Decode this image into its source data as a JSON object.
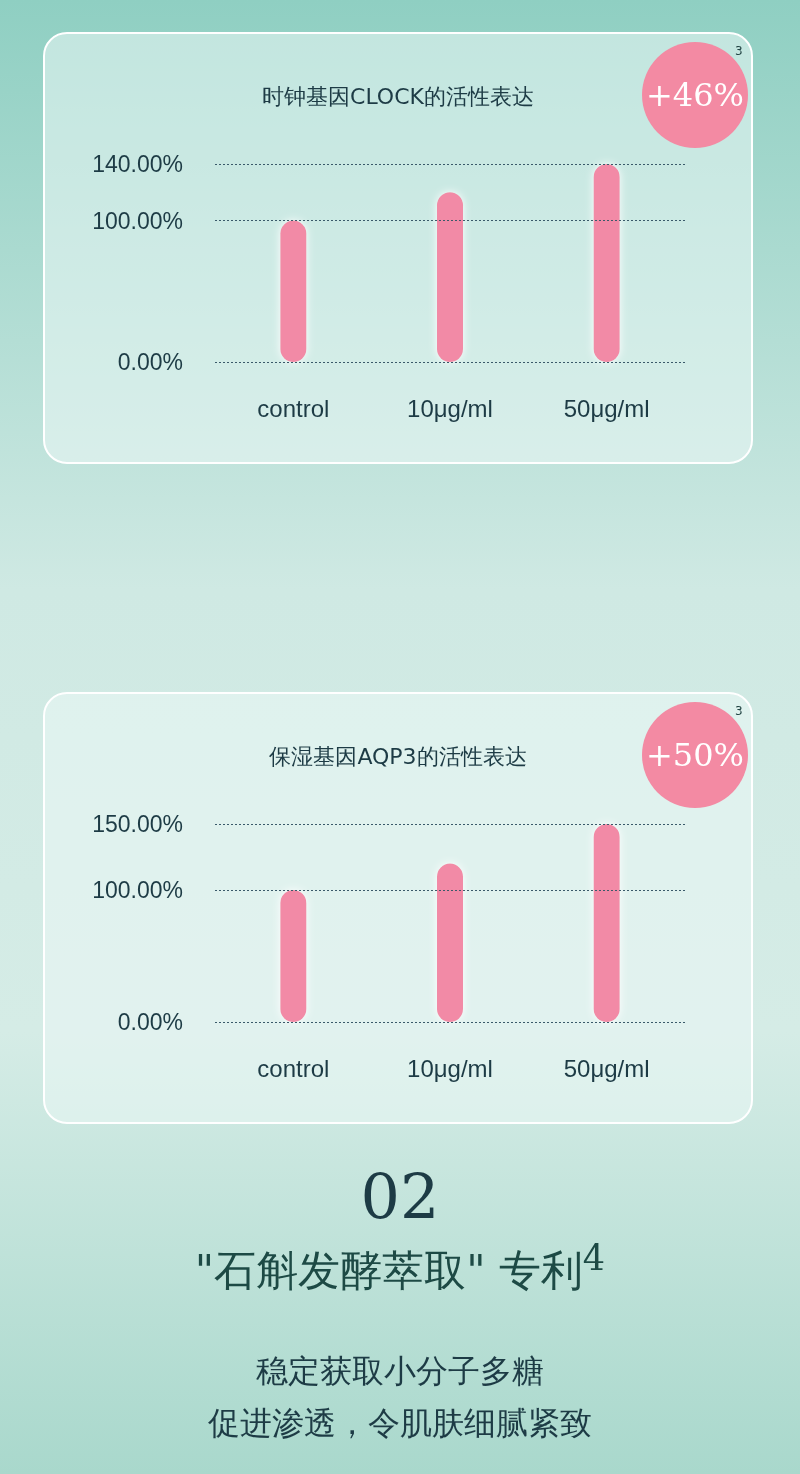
{
  "chart_data": [
    {
      "type": "bar",
      "title": "时钟基因CLOCK的活性表达",
      "categories": [
        "control",
        "10μg/ml",
        "50μg/ml"
      ],
      "values": [
        100,
        120,
        140
      ],
      "color": "#f28aa6",
      "ylim": [
        0,
        140
      ],
      "yticks": [
        {
          "value": 0,
          "label": "0.00%"
        },
        {
          "value": 100,
          "label": "100.00%"
        },
        {
          "value": 140,
          "label": "140.00%"
        }
      ],
      "ref_lines": [
        {
          "axis": "y",
          "value": 0,
          "color": "#3a5a6a",
          "line_style": "dotted"
        },
        {
          "axis": "y",
          "value": 100,
          "color": "#3a5a6a",
          "line_style": "dotted"
        },
        {
          "axis": "y",
          "value": 140,
          "color": "#3a5a6a",
          "line_style": "dotted"
        }
      ],
      "annotations": [
        "+46%",
        "3"
      ]
    },
    {
      "type": "bar",
      "title": "保湿基因AQP3的活性表达",
      "categories": [
        "control",
        "10μg/ml",
        "50μg/ml"
      ],
      "values": [
        100,
        120,
        150
      ],
      "color": "#f28aa6",
      "ylim": [
        0,
        150
      ],
      "yticks": [
        {
          "value": 0,
          "label": "0.00%"
        },
        {
          "value": 100,
          "label": "100.00%"
        },
        {
          "value": 150,
          "label": "150.00%"
        }
      ],
      "ref_lines": [
        {
          "axis": "y",
          "value": 0,
          "color": "#3a5a6a",
          "line_style": "dotted"
        },
        {
          "axis": "y",
          "value": 100,
          "color": "#3a5a6a",
          "line_style": "dotted"
        },
        {
          "axis": "y",
          "value": 150,
          "color": "#3a5a6a",
          "line_style": "dotted"
        }
      ],
      "annotations": [
        "+50%",
        "3"
      ]
    },
    {
      "type": "other",
      "annotations": [
        "02",
        "\"石斛发酵萃取\" 专利$^{4}$",
        "稳定获取小分子多糖",
        "促进渗透，令肌肤细腻紧致"
      ]
    }
  ]
}
